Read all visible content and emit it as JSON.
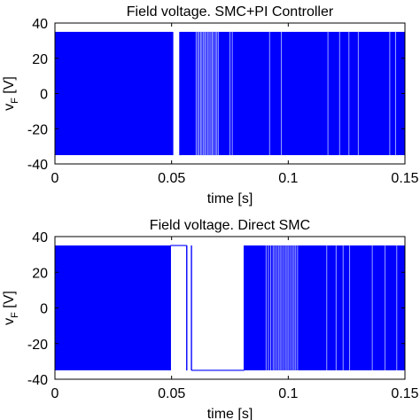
{
  "chart_data": [
    {
      "type": "line",
      "title": "Field voltage. SMC+PI Controller",
      "xlabel": "time [s]",
      "ylabel_main": "v",
      "ylabel_sub": "F",
      "ylabel_unit": "[V]",
      "xlim": [
        0,
        0.15
      ],
      "ylim": [
        -40,
        40
      ],
      "xticks": [
        0,
        0.05,
        0.1,
        0.15
      ],
      "xticklabels": [
        "0",
        "0.05",
        "0.1",
        "0.15"
      ],
      "yticks": [
        40,
        20,
        0,
        -20,
        -40
      ],
      "yticklabels": [
        "40",
        "20",
        "0",
        "-20",
        "-40"
      ],
      "grid": false,
      "series_color": "#0000ff",
      "series": [
        {
          "switching_levels": [
            35,
            -35
          ],
          "switching_segments": [
            [
              0,
              0.0505
            ],
            [
              0.0535,
              0.15
            ]
          ],
          "held_segments": [],
          "gaps": [
            [
              0.0505,
              0.0535
            ]
          ],
          "light_lines_x": [
            0.0605,
            0.0612,
            0.0618,
            0.0625,
            0.063,
            0.0637,
            0.0642,
            0.0648,
            0.0655,
            0.0661,
            0.0668,
            0.0674,
            0.068,
            0.0688,
            0.0694,
            0.07,
            0.075,
            0.076,
            0.092,
            0.097,
            0.117,
            0.122,
            0.126,
            0.13,
            0.1435,
            0.146
          ]
        }
      ]
    },
    {
      "type": "line",
      "title": "Field voltage. Direct SMC",
      "xlabel": "time [s]",
      "ylabel_main": "v",
      "ylabel_sub": "F",
      "ylabel_unit": "[V]",
      "xlim": [
        0,
        0.15
      ],
      "ylim": [
        -40,
        40
      ],
      "xticks": [
        0,
        0.05,
        0.1,
        0.15
      ],
      "xticklabels": [
        "0",
        "0.05",
        "0.1",
        "0.15"
      ],
      "yticks": [
        40,
        20,
        0,
        -20,
        -40
      ],
      "yticklabels": [
        "40",
        "20",
        "0",
        "-20",
        "-40"
      ],
      "grid": false,
      "series_color": "#0000ff",
      "series": [
        {
          "switching_levels": [
            35,
            -35
          ],
          "switching_segments": [
            [
              0,
              0.0495
            ],
            [
              0.0811,
              0.15
            ]
          ],
          "held_segments": [
            {
              "x0": 0.0495,
              "x1": 0.0565,
              "value": 35
            },
            {
              "x0": 0.0585,
              "x1": 0.0811,
              "value": -35
            }
          ],
          "gaps": [
            [
              0.0495,
              0.0565
            ],
            [
              0.0565,
              0.0585
            ],
            [
              0.0585,
              0.0811
            ]
          ],
          "light_lines_x": [
            0.0905,
            0.0915,
            0.0925,
            0.0935,
            0.0942,
            0.095,
            0.0958,
            0.0965,
            0.0972,
            0.098,
            0.0988,
            0.0995,
            0.1002,
            0.101,
            0.1018,
            0.1025,
            0.1032,
            0.104,
            0.1165,
            0.1205,
            0.1235,
            0.1263,
            0.136,
            0.1415,
            0.1465
          ]
        }
      ]
    }
  ]
}
